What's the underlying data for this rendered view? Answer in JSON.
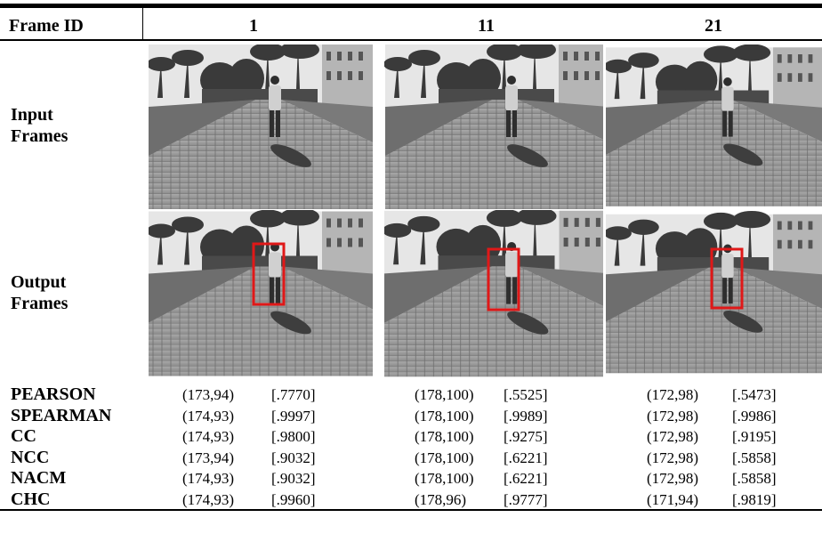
{
  "table": {
    "header": [
      "Frame ID",
      "1",
      "11",
      "21"
    ],
    "image_rows": [
      "Input Frames",
      "Output Frames"
    ],
    "rows": [
      {
        "label": "PEARSON",
        "cells": [
          [
            "(173,94)",
            "[.7770]"
          ],
          [
            "(178,100)",
            "[.5525]"
          ],
          [
            "(172,98)",
            "[.5473]"
          ]
        ]
      },
      {
        "label": "SPEARMAN",
        "cells": [
          [
            "(174,93)",
            "[.9997]"
          ],
          [
            "(178,100)",
            "[.9989]"
          ],
          [
            "(172,98)",
            "[.9986]"
          ]
        ]
      },
      {
        "label": "CC",
        "cells": [
          [
            "(174,93)",
            "[.9800]"
          ],
          [
            "(178,100)",
            "[.9275]"
          ],
          [
            "(172,98)",
            "[.9195]"
          ]
        ]
      },
      {
        "label": "NCC",
        "cells": [
          [
            "(173,94)",
            "[.9032]"
          ],
          [
            "(178,100)",
            "[.6221]"
          ],
          [
            "(172,98)",
            "[.5858]"
          ]
        ]
      },
      {
        "label": "NACM",
        "cells": [
          [
            "(174,93)",
            "[.9032]"
          ],
          [
            "(178,100)",
            "[.6221]"
          ],
          [
            "(172,98)",
            "[.5858]"
          ]
        ]
      },
      {
        "label": "CHC",
        "cells": [
          [
            "(174,93)",
            "[.9960]"
          ],
          [
            "(178,96)",
            "[.9777]"
          ],
          [
            "(171,94)",
            "[.9819]"
          ]
        ]
      }
    ]
  }
}
